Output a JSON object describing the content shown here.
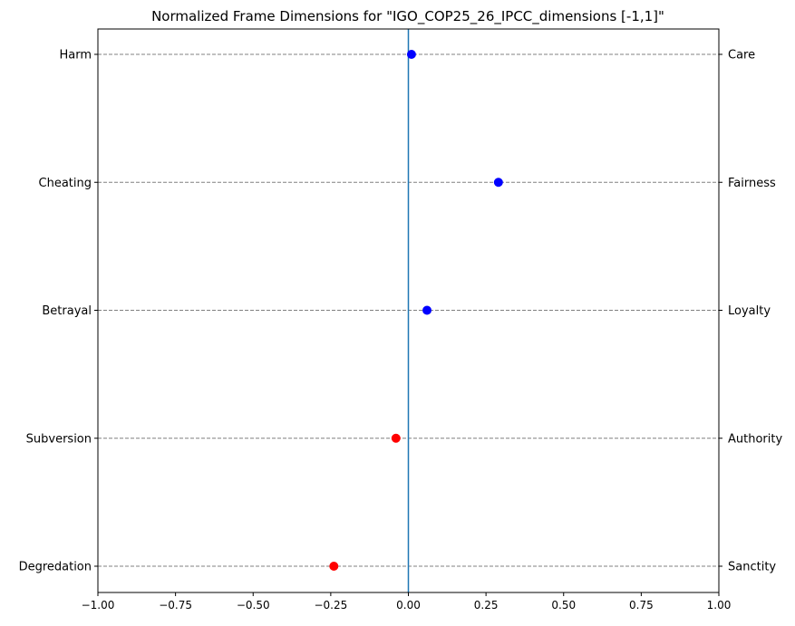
{
  "chart_data": {
    "type": "scatter",
    "title": "Normalized Frame Dimensions for \"IGO_COP25_26_IPCC_dimensions [-1,1]\"",
    "xlabel": "",
    "ylabel": "",
    "xlim": [
      -1.0,
      1.0
    ],
    "x_ticks": [
      "−1.00",
      "−0.75",
      "−0.50",
      "−0.25",
      "0.00",
      "0.25",
      "0.50",
      "0.75",
      "1.00"
    ],
    "x_tick_values": [
      -1.0,
      -0.75,
      -0.5,
      -0.25,
      0.0,
      0.25,
      0.5,
      0.75,
      1.0
    ],
    "reference_line_x": 0.0,
    "reference_line_color": "#1f77b4",
    "grid": "horizontal dashed",
    "positive_color": "#0000ff",
    "negative_color": "#ff0000",
    "dimensions": [
      {
        "left_label": "Harm",
        "right_label": "Care",
        "value": 0.01
      },
      {
        "left_label": "Cheating",
        "right_label": "Fairness",
        "value": 0.29
      },
      {
        "left_label": "Betrayal",
        "right_label": "Loyalty",
        "value": 0.06
      },
      {
        "left_label": "Subversion",
        "right_label": "Authority",
        "value": -0.04
      },
      {
        "left_label": "Degredation",
        "right_label": "Sanctity",
        "value": -0.24
      }
    ]
  }
}
